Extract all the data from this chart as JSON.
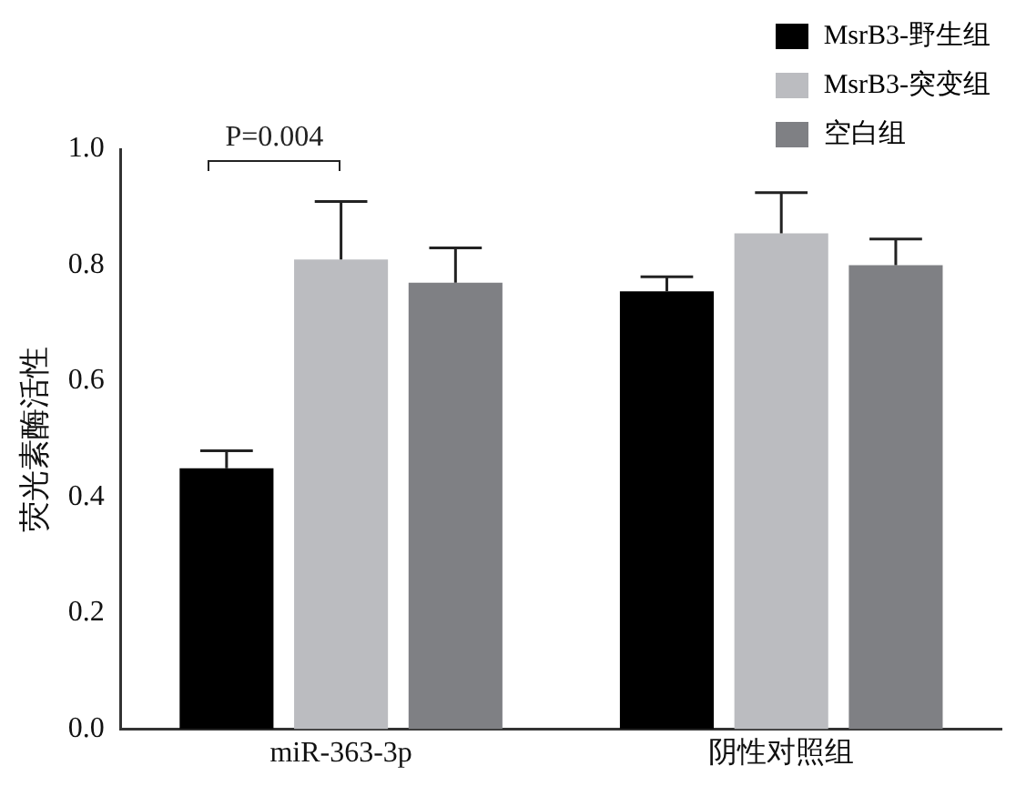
{
  "chart_data": {
    "type": "bar",
    "ylabel": "荧光素酶活性",
    "categories": [
      "miR-363-3p",
      "阴性对照组"
    ],
    "series": [
      {
        "name": "MsrB3-野生组",
        "color": "#000000",
        "values": [
          0.45,
          0.755
        ],
        "errors": [
          0.03,
          0.025
        ]
      },
      {
        "name": "MsrB3-突变组",
        "color": "#bbbcc0",
        "values": [
          0.81,
          0.855
        ],
        "errors": [
          0.1,
          0.07
        ]
      },
      {
        "name": "空白组",
        "color": "#7f8084",
        "values": [
          0.77,
          0.8
        ],
        "errors": [
          0.06,
          0.045
        ]
      }
    ],
    "ylim": [
      0,
      1
    ],
    "yticks": [
      {
        "value": 0,
        "label": "0.0"
      },
      {
        "value": 0.2,
        "label": "0.2"
      },
      {
        "value": 0.4,
        "label": "0.4"
      },
      {
        "value": 0.6,
        "label": "0.6"
      },
      {
        "value": 0.8,
        "label": "0.8"
      },
      {
        "value": 1,
        "label": "1.0"
      }
    ],
    "grid": false,
    "legend": "top right",
    "annotations": [
      "P=0.004"
    ]
  }
}
